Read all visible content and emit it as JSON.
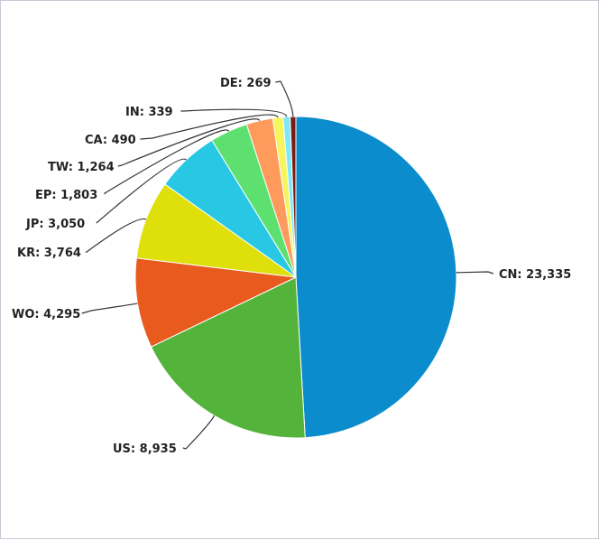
{
  "chart_data": {
    "type": "pie",
    "start_angle_deg": 0,
    "direction": "clockwise",
    "slices": [
      {
        "label": "CN",
        "value": 23335,
        "display": "CN: 23,335",
        "color": "#0b8ccc"
      },
      {
        "label": "US",
        "value": 8935,
        "display": "US: 8,935",
        "color": "#54b33a"
      },
      {
        "label": "WO",
        "value": 4295,
        "display": "WO: 4,295",
        "color": "#e85a1e"
      },
      {
        "label": "KR",
        "value": 3764,
        "display": "KR: 3,764",
        "color": "#dfdf0b"
      },
      {
        "label": "JP",
        "value": 3050,
        "display": "JP: 3,050",
        "color": "#28c8e4"
      },
      {
        "label": "EP",
        "value": 1803,
        "display": "EP: 1,803",
        "color": "#5ee070"
      },
      {
        "label": "TW",
        "value": 1264,
        "display": "TW: 1,264",
        "color": "#fd9a5c"
      },
      {
        "label": "CA",
        "value": 490,
        "display": "CA: 490",
        "color": "#f6f65c"
      },
      {
        "label": "IN",
        "value": 339,
        "display": "IN: 339",
        "color": "#7ee8f8"
      },
      {
        "label": "DE",
        "value": 269,
        "display": "DE: 269",
        "color": "#7a1c12"
      }
    ]
  }
}
